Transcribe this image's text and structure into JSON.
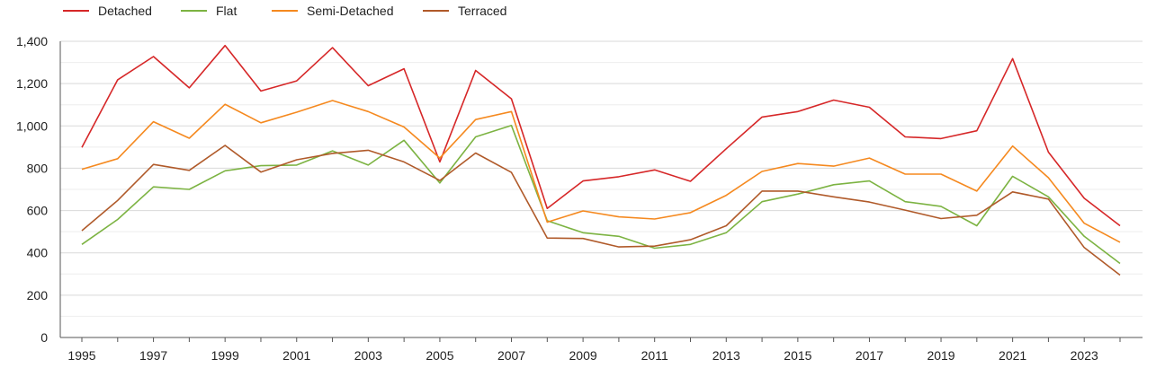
{
  "chart_data": {
    "type": "line",
    "title": "",
    "xlabel": "",
    "ylabel": "",
    "x": [
      1995,
      1996,
      1997,
      1998,
      1999,
      2000,
      2001,
      2002,
      2003,
      2004,
      2005,
      2006,
      2007,
      2008,
      2009,
      2010,
      2011,
      2012,
      2013,
      2014,
      2015,
      2016,
      2017,
      2018,
      2019,
      2020,
      2021,
      2022,
      2023,
      2024
    ],
    "x_tick_labels": [
      "1995",
      "1997",
      "1999",
      "2001",
      "2003",
      "2005",
      "2007",
      "2009",
      "2011",
      "2013",
      "2015",
      "2017",
      "2019",
      "2021",
      "2023"
    ],
    "y_tick_labels": [
      "0",
      "200",
      "400",
      "600",
      "800",
      "1,000",
      "1,200",
      "1,400"
    ],
    "ylim": [
      0,
      1400
    ],
    "xlim": [
      1995,
      2024
    ],
    "grid": true,
    "legend_position": "top-left",
    "series": [
      {
        "name": "Detached",
        "color": "#d62728",
        "values": [
          898,
          1218,
          1328,
          1180,
          1380,
          1165,
          1213,
          1370,
          1190,
          1270,
          830,
          1262,
          1128,
          610,
          740,
          760,
          792,
          738,
          892,
          1042,
          1068,
          1122,
          1088,
          948,
          940,
          977,
          1318,
          876,
          658,
          528
        ]
      },
      {
        "name": "Flat",
        "color": "#7cb342",
        "values": [
          440,
          558,
          712,
          700,
          788,
          812,
          815,
          882,
          815,
          932,
          730,
          948,
          1002,
          552,
          495,
          478,
          422,
          440,
          495,
          642,
          678,
          722,
          740,
          642,
          620,
          528,
          762,
          665,
          478,
          350
        ]
      },
      {
        "name": "Semi-Detached",
        "color": "#f5891f",
        "values": [
          795,
          845,
          1020,
          942,
          1102,
          1015,
          1065,
          1120,
          1068,
          995,
          848,
          1030,
          1068,
          545,
          598,
          570,
          560,
          590,
          672,
          785,
          822,
          810,
          848,
          772,
          772,
          692,
          905,
          755,
          540,
          450
        ]
      },
      {
        "name": "Terraced",
        "color": "#b05a2a",
        "values": [
          505,
          648,
          818,
          790,
          908,
          782,
          840,
          870,
          885,
          830,
          742,
          872,
          780,
          470,
          468,
          428,
          432,
          462,
          528,
          692,
          692,
          665,
          640,
          602,
          562,
          578,
          688,
          654,
          425,
          295
        ]
      }
    ]
  }
}
